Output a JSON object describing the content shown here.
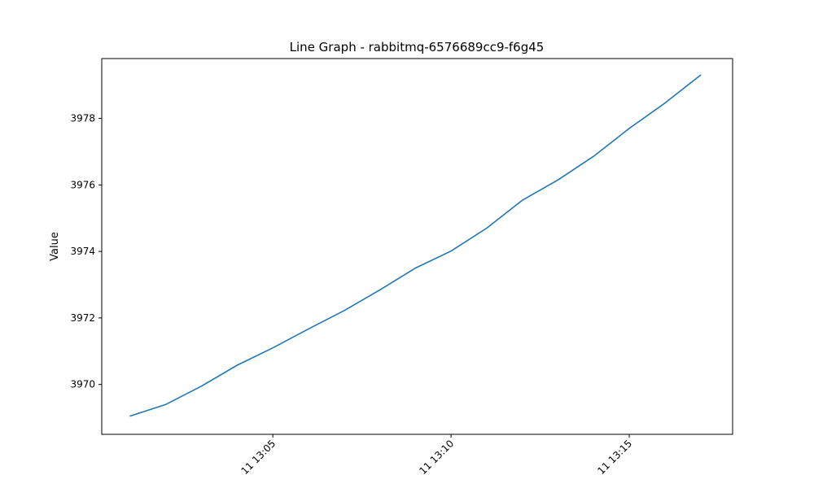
{
  "chart_data": {
    "type": "line",
    "title": "Line Graph - rabbitmq-6576689cc9-f6g45",
    "xlabel": "",
    "ylabel": "Value",
    "x_ticks": [
      {
        "minute": 5,
        "label": "11 13:05"
      },
      {
        "minute": 10,
        "label": "11 13:10"
      },
      {
        "minute": 15,
        "label": "11 13:15"
      }
    ],
    "y_ticks": [
      {
        "value": 3970,
        "label": "3970"
      },
      {
        "value": 3972,
        "label": "3972"
      },
      {
        "value": 3974,
        "label": "3974"
      },
      {
        "value": 3976,
        "label": "3976"
      },
      {
        "value": 3978,
        "label": "3978"
      }
    ],
    "xlim": [
      0.2,
      17.9
    ],
    "ylim": [
      3968.5,
      3979.8
    ],
    "grid": false,
    "series": [
      {
        "color": "#1f77b4",
        "x": [
          1,
          2,
          3,
          4,
          5,
          6,
          7,
          8,
          9,
          10,
          11,
          12,
          13,
          14,
          15,
          16,
          17
        ],
        "y": [
          3969.05,
          3969.4,
          3969.95,
          3970.58,
          3971.1,
          3971.67,
          3972.22,
          3972.84,
          3973.5,
          3974.01,
          3974.7,
          3975.54,
          3976.15,
          3976.86,
          3977.7,
          3978.46,
          3979.3
        ]
      }
    ]
  }
}
